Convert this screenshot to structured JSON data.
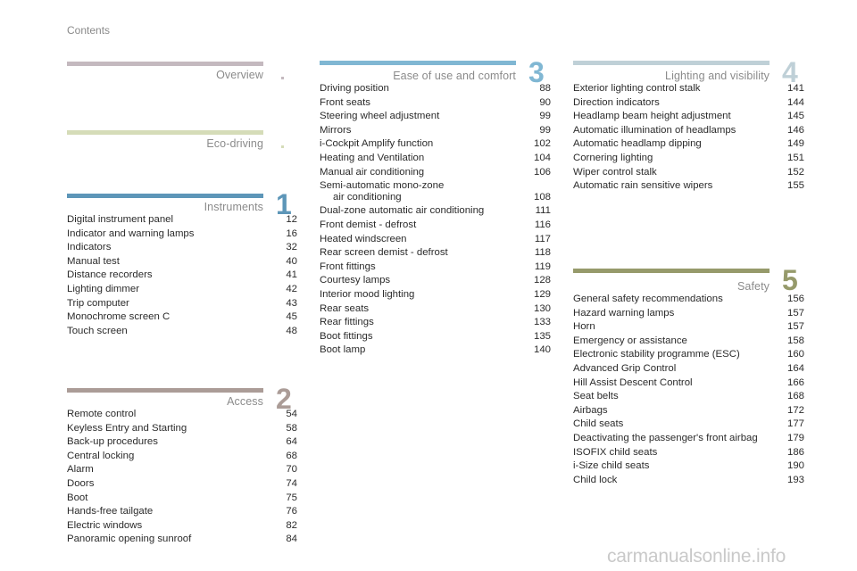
{
  "header": {
    "title": "Contents"
  },
  "watermark": "carmanualsonline.info",
  "sections": {
    "overview": {
      "title": "Overview",
      "color": "#c4b9bf",
      "entries": []
    },
    "eco": {
      "title": "Eco-driving",
      "color": "#d5dcb8",
      "entries": []
    },
    "instruments": {
      "title": "Instruments",
      "number": "1",
      "color": "#5d96b8",
      "entries": [
        {
          "label": "Digital instrument panel",
          "page": "12"
        },
        {
          "label": "Indicator and warning lamps",
          "page": "16"
        },
        {
          "label": "Indicators",
          "page": "32"
        },
        {
          "label": "Manual test",
          "page": "40"
        },
        {
          "label": "Distance recorders",
          "page": "41"
        },
        {
          "label": "Lighting dimmer",
          "page": "42"
        },
        {
          "label": "Trip computer",
          "page": "43"
        },
        {
          "label": "Monochrome screen C",
          "page": "45"
        },
        {
          "label": "Touch screen",
          "page": "48"
        }
      ]
    },
    "access": {
      "title": "Access",
      "number": "2",
      "color": "#ab9c97",
      "entries": [
        {
          "label": "Remote control",
          "page": "54"
        },
        {
          "label": "Keyless Entry and Starting",
          "page": "58"
        },
        {
          "label": "Back-up procedures",
          "page": "64"
        },
        {
          "label": "Central locking",
          "page": "68"
        },
        {
          "label": "Alarm",
          "page": "70"
        },
        {
          "label": "Doors",
          "page": "74"
        },
        {
          "label": "Boot",
          "page": "75"
        },
        {
          "label": "Hands-free tailgate",
          "page": "76"
        },
        {
          "label": "Electric windows",
          "page": "82"
        },
        {
          "label": "Panoramic opening sunroof",
          "page": "84"
        }
      ]
    },
    "ease": {
      "title": "Ease of use and comfort",
      "number": "3",
      "color": "#80b7d3",
      "entries": [
        {
          "label": "Driving position",
          "page": "88"
        },
        {
          "label": "Front seats",
          "page": "90"
        },
        {
          "label": "Steering wheel adjustment",
          "page": "99"
        },
        {
          "label": "Mirrors",
          "page": "99"
        },
        {
          "label": "i-Cockpit Amplify function",
          "page": "102"
        },
        {
          "label": "Heating and Ventilation",
          "page": "104"
        },
        {
          "label": "Manual air conditioning",
          "page": "106"
        },
        {
          "label": "Semi-automatic mono-zone",
          "label2": "air conditioning",
          "page": "108"
        },
        {
          "label": "Dual-zone automatic air conditioning",
          "page": "111"
        },
        {
          "label": "Front demist - defrost",
          "page": "116"
        },
        {
          "label": "Heated windscreen",
          "page": "117"
        },
        {
          "label": "Rear screen demist - defrost",
          "page": "118"
        },
        {
          "label": "Front fittings",
          "page": "119"
        },
        {
          "label": "Courtesy lamps",
          "page": "128"
        },
        {
          "label": "Interior mood lighting",
          "page": "129"
        },
        {
          "label": "Rear seats",
          "page": "130"
        },
        {
          "label": "Rear fittings",
          "page": "133"
        },
        {
          "label": "Boot fittings",
          "page": "135"
        },
        {
          "label": "Boot lamp",
          "page": "140"
        }
      ]
    },
    "lighting": {
      "title": "Lighting and visibility",
      "number": "4",
      "color": "#bfd0d7",
      "entries": [
        {
          "label": "Exterior lighting control stalk",
          "page": "141"
        },
        {
          "label": "Direction indicators",
          "page": "144"
        },
        {
          "label": "Headlamp beam height adjustment",
          "page": "145"
        },
        {
          "label": "Automatic illumination of headlamps",
          "page": "146"
        },
        {
          "label": "Automatic headlamp dipping",
          "page": "149"
        },
        {
          "label": "Cornering lighting",
          "page": "151"
        },
        {
          "label": "Wiper control stalk",
          "page": "152"
        },
        {
          "label": "Automatic rain sensitive wipers",
          "page": "155"
        }
      ]
    },
    "safety": {
      "title": "Safety",
      "number": "5",
      "color": "#969a6b",
      "entries": [
        {
          "label": "General safety recommendations",
          "page": "156"
        },
        {
          "label": "Hazard warning lamps",
          "page": "157"
        },
        {
          "label": "Horn",
          "page": "157"
        },
        {
          "label": "Emergency or assistance",
          "page": "158"
        },
        {
          "label": "Electronic stability programme (ESC)",
          "page": "160"
        },
        {
          "label": "Advanced Grip Control",
          "page": "164"
        },
        {
          "label": "Hill Assist Descent Control",
          "page": "166"
        },
        {
          "label": "Seat belts",
          "page": "168"
        },
        {
          "label": "Airbags",
          "page": "172"
        },
        {
          "label": "Child seats",
          "page": "177"
        },
        {
          "label": "Deactivating the passenger's front airbag",
          "page": "179"
        },
        {
          "label": "ISOFIX child seats",
          "page": "186"
        },
        {
          "label": "i-Size child seats",
          "page": "190"
        },
        {
          "label": "Child lock",
          "page": "193"
        }
      ]
    }
  }
}
